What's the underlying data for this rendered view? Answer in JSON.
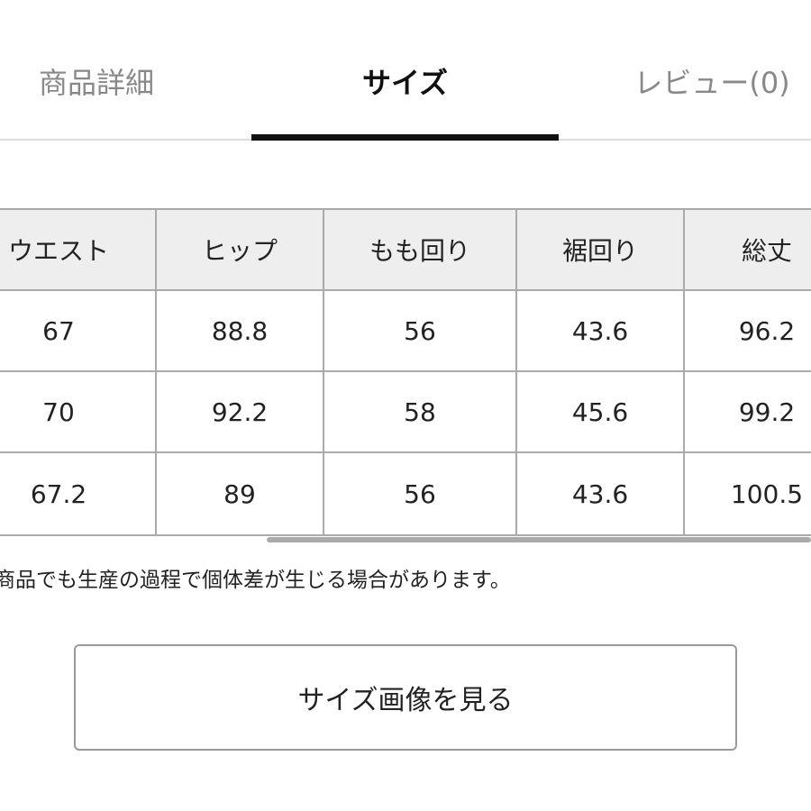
{
  "tabs": [
    "商品詳細",
    "サイズ",
    "レビュー(0)"
  ],
  "table": {
    "header": [
      "ウエスト",
      "ヒップ",
      "もも回り",
      "裾回り",
      "総丈"
    ],
    "rows": [
      [
        67,
        88.8,
        56,
        43.6,
        96.2
      ],
      [
        70,
        92.2,
        58,
        45.6,
        99.2
      ],
      [
        67.2,
        89,
        56,
        43.6,
        100.5
      ]
    ]
  },
  "note": "商品でも生産の過程で個体差が生じる場合があります。",
  "button": "サイズ画像を見る"
}
